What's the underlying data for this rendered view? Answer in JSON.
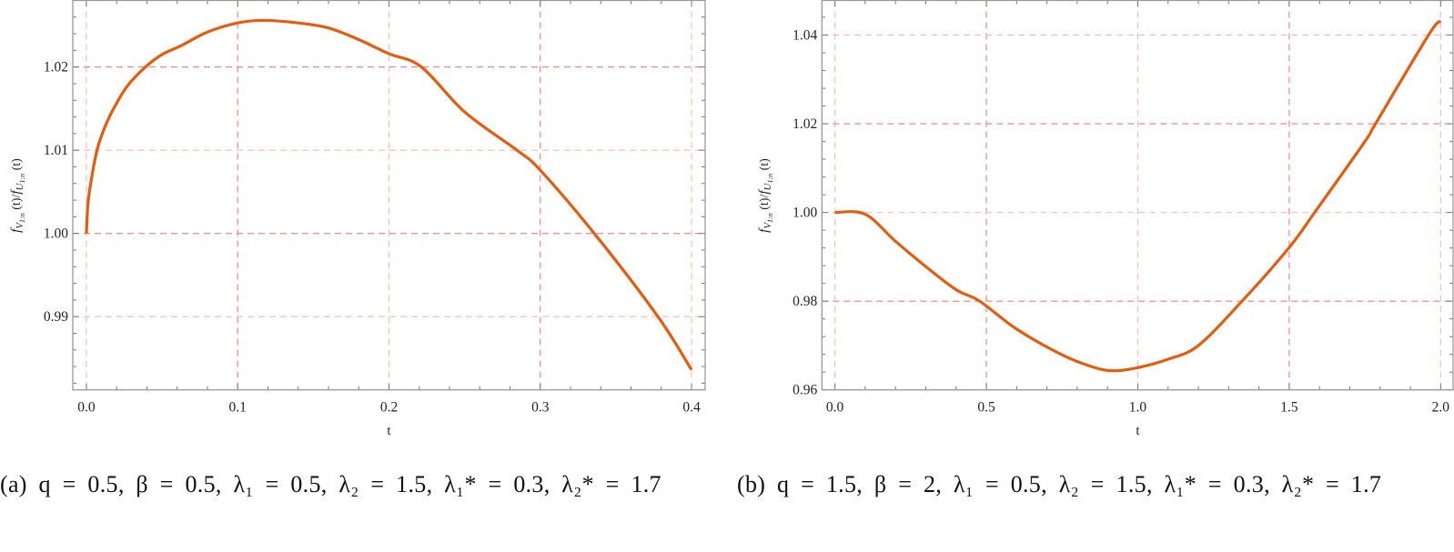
{
  "chart_data": [
    {
      "type": "line",
      "panel": "a",
      "xlabel": "t",
      "ylabel": "f_{V_{1:n}}(t)/f_{U_{1:n}}(t)",
      "ylabel_parts": {
        "f1": "f",
        "s1": "V",
        "ss1": "1:n",
        "p1": " (t)/",
        "f2": "f",
        "s2": "U",
        "ss2": "1:n",
        "p2": " (t)"
      },
      "xlim": [
        -0.009,
        0.409
      ],
      "ylim": [
        0.9812,
        1.028
      ],
      "x_ticks": [
        0.0,
        0.1,
        0.2,
        0.3,
        0.4
      ],
      "x_tick_labels": [
        "0.0",
        "0.1",
        "0.2",
        "0.3",
        "0.4"
      ],
      "y_ticks": [
        0.99,
        1.0,
        1.01,
        1.02
      ],
      "y_tick_labels": [
        "0.99",
        "1.00",
        "1.01",
        "1.02"
      ],
      "grid": true,
      "line_color": "#E65C0E",
      "grid_color": "#F07A7A",
      "series": [
        {
          "x": [
            0,
            0.001,
            0.003,
            0.007,
            0.012,
            0.018,
            0.027,
            0.039,
            0.05,
            0.063,
            0.08,
            0.1,
            0.117,
            0.14,
            0.16,
            0.18,
            0.2,
            0.2215,
            0.25,
            0.2846,
            0.3,
            0.3357,
            0.3778,
            0.4
          ],
          "y": [
            1.0,
            1.0035,
            1.0062,
            1.01,
            1.0127,
            1.015,
            1.0177,
            1.02,
            1.0215,
            1.0226,
            1.0242,
            1.0253,
            1.0256,
            1.0253,
            1.0247,
            1.0233,
            1.0216,
            1.02,
            1.0146,
            1.01,
            1.0076,
            1.0,
            0.99,
            0.9836
          ]
        }
      ],
      "caption": "(a) q = 0.5, β = 0.5, λ₁ = 0.5, λ₂ = 1.5, λ₁* = 0.3, λ₂* = 1.7"
    },
    {
      "type": "line",
      "panel": "b",
      "xlabel": "t",
      "ylabel": "f_{V_{1:n}}(t)/f_{U_{1:n}}(t)",
      "ylabel_parts": {
        "f1": "f",
        "s1": "V",
        "ss1": "1:n",
        "p1": " (t)/",
        "f2": "f",
        "s2": "U",
        "ss2": "1:n",
        "p2": " (t)"
      },
      "xlim": [
        -0.043,
        2.041
      ],
      "ylim": [
        0.96,
        1.0478
      ],
      "x_ticks": [
        0.0,
        0.5,
        1.0,
        1.5,
        2.0
      ],
      "x_tick_labels": [
        "0.0",
        "0.5",
        "1.0",
        "1.5",
        "2.0"
      ],
      "y_ticks": [
        0.96,
        0.98,
        1.0,
        1.02,
        1.04
      ],
      "y_tick_labels": [
        "0.96",
        "0.98",
        "1.00",
        "1.02",
        "1.04"
      ],
      "grid": true,
      "line_color": "#E65C0E",
      "grid_color": "#F07A7A",
      "series": [
        {
          "x": [
            0,
            0.1,
            0.2,
            0.3,
            0.4,
            0.478,
            0.6,
            0.75,
            0.85,
            0.918,
            1.0,
            1.1,
            1.2,
            1.344,
            1.5,
            1.584,
            1.75,
            1.785,
            1.96,
            2.0
          ],
          "y": [
            1.0,
            0.9996,
            0.9935,
            0.9878,
            0.9826,
            0.98,
            0.9737,
            0.9679,
            0.9652,
            0.9643,
            0.965,
            0.9669,
            0.97,
            0.98,
            0.9921,
            1.0,
            1.016,
            1.02,
            1.04,
            1.0432
          ]
        }
      ],
      "caption": "(b) q = 1.5, β = 2, λ₁ = 0.5, λ₂ = 1.5, λ₁* = 0.3, λ₂* = 1.7"
    }
  ]
}
